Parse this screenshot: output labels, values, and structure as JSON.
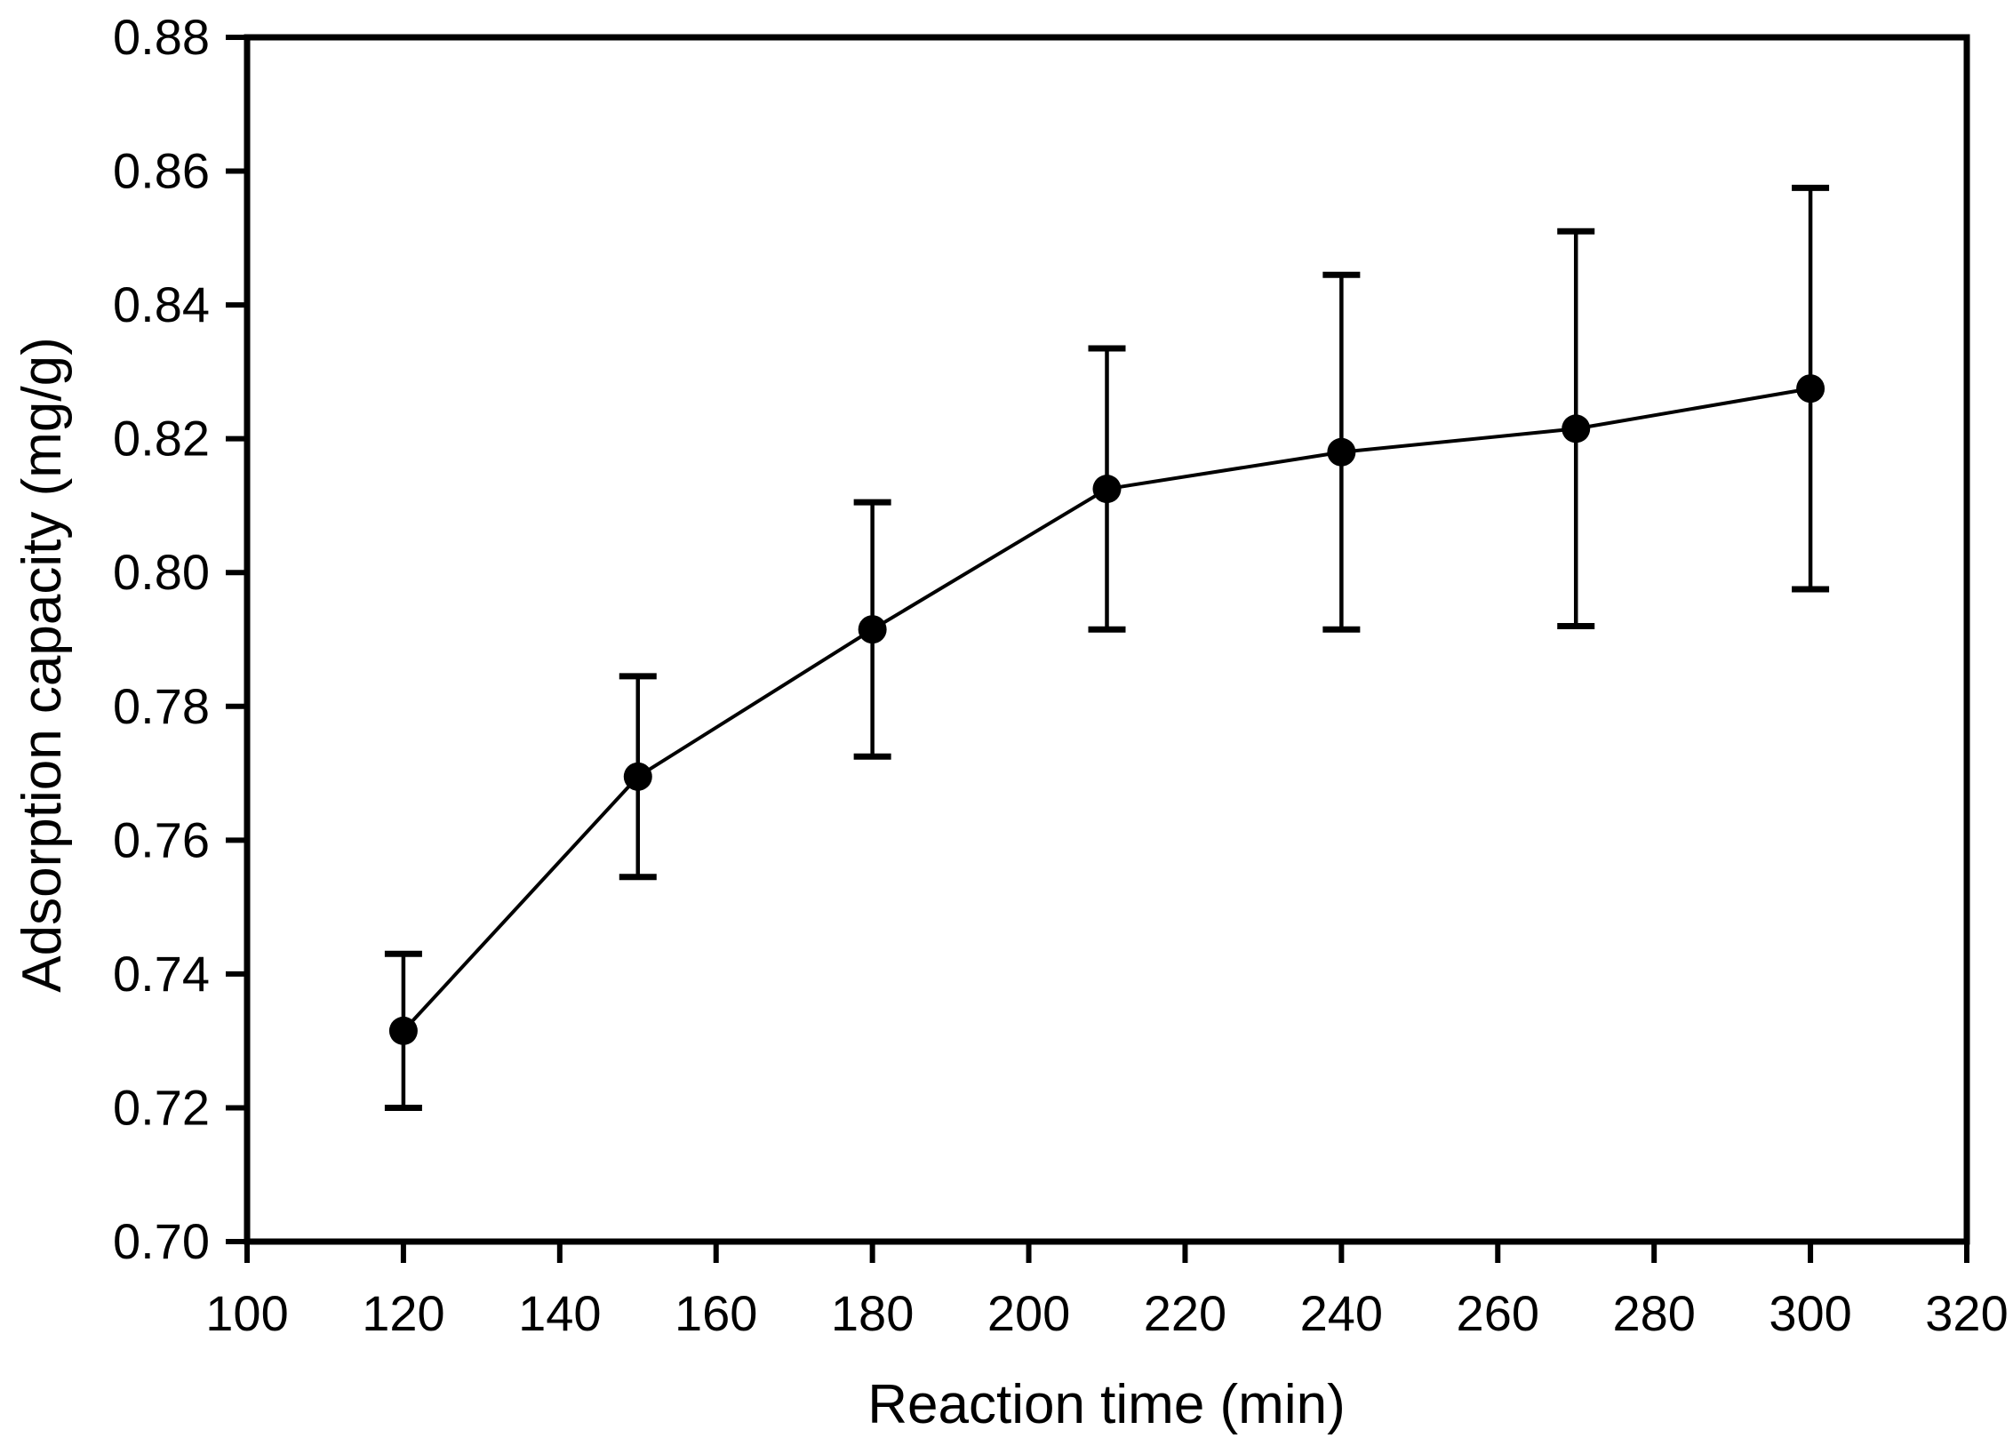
{
  "figure": {
    "background_color": "#ffffff",
    "foreground_color": "#000000"
  },
  "chart_data": {
    "type": "line",
    "title": "",
    "xlabel": "Reaction time (min)",
    "ylabel": "Adsorption capacity (mg/g)",
    "series": [
      {
        "name": "Adsorption capacity",
        "marker": "filled-circle",
        "line_style": "solid",
        "color": "#000000",
        "x": [
          120,
          150,
          180,
          210,
          240,
          270,
          300
        ],
        "y": [
          0.7315,
          0.7695,
          0.7915,
          0.8125,
          0.818,
          0.8215,
          0.8275
        ],
        "yerr": [
          0.0115,
          0.015,
          0.019,
          0.021,
          0.0265,
          0.0295,
          0.03
        ]
      }
    ],
    "xlim": [
      100,
      320
    ],
    "ylim": [
      0.7,
      0.88
    ],
    "xtick_values": [
      100,
      120,
      140,
      160,
      180,
      200,
      220,
      240,
      260,
      280,
      300,
      320
    ],
    "xtick_labels": [
      "100",
      "120",
      "140",
      "160",
      "180",
      "200",
      "220",
      "240",
      "260",
      "280",
      "300",
      "320"
    ],
    "ytick_values": [
      0.7,
      0.72,
      0.74,
      0.76,
      0.78,
      0.8,
      0.82,
      0.84,
      0.86,
      0.88
    ],
    "ytick_labels": [
      "0.70",
      "0.72",
      "0.74",
      "0.76",
      "0.78",
      "0.80",
      "0.82",
      "0.84",
      "0.86",
      "0.88"
    ],
    "grid": false,
    "legend": null,
    "frame": "full-box",
    "tick_direction": "out"
  }
}
